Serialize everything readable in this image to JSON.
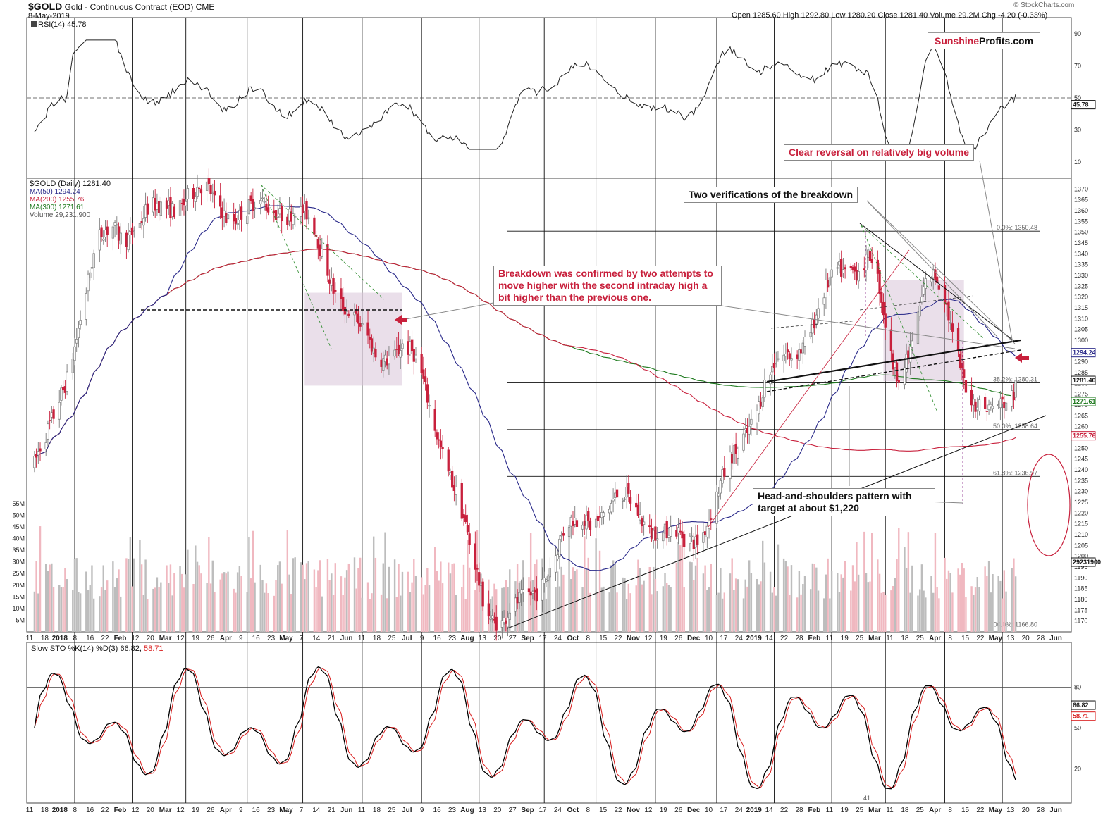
{
  "header": {
    "symbol": "$GOLD",
    "name": "Gold - Continuous Contract (EOD)",
    "exchange": "CME",
    "date": "8-May-2019",
    "ohlc": "Open 1285.60  High 1292.80  Low 1280.20  Close 1281.40  Volume 29.2M  Chg -4.20 (-0.33%)",
    "copyright": "© StockCharts.com"
  },
  "brand": {
    "part1": "Sunshine",
    "part2": "Profits.com"
  },
  "annotations": {
    "clear_reversal": "Clear reversal on relatively big volume",
    "two_verifications": "Two verifications of the breakdown",
    "breakdown_confirmed": "Breakdown was confirmed by two attempts to move higher with the second intraday high a bit higher than the previous one.",
    "head_shoulders": "Head-and-shoulders pattern with target at about $1,220"
  },
  "colors": {
    "up": "#7a7a7a",
    "down": "#c8203c",
    "ma50": "#2a2a8a",
    "ma200": "#c8203c",
    "ma300": "#1e7a1e",
    "fib": "#111111",
    "rsi": "#222222",
    "stoch_k": "#000000",
    "stoch_d": "#d81b1b",
    "pattern_zone": "#d8c4d8",
    "volume_up": "#bdbdbd",
    "volume_down": "#f0b8c0"
  },
  "chart_data": {
    "type": "candlestick",
    "price_panel": {
      "legend_title": "$GOLD (Daily) 1281.40",
      "legend_ma50": "MA(50) 1294.24",
      "legend_ma200": "MA(200) 1255.76",
      "legend_ma300": "MA(300) 1271.61",
      "legend_volume": "Volume 29,231,900",
      "ylim": [
        1165,
        1375
      ],
      "y_ticks": [
        "1370",
        "1365",
        "1360",
        "1355",
        "1350",
        "1345",
        "1340",
        "1335",
        "1330",
        "1325",
        "1320",
        "1315",
        "1310",
        "1305",
        "1300",
        "1295",
        "1290",
        "1285",
        "1280",
        "1275",
        "1270",
        "1265",
        "1260",
        "1255",
        "1250",
        "1245",
        "1240",
        "1235",
        "1230",
        "1225",
        "1220",
        "1215",
        "1210",
        "1205",
        "1200",
        "1195",
        "1190",
        "1185",
        "1180",
        "1175",
        "1170"
      ],
      "last_values": {
        "close": "1281.40",
        "ma50": "1294.24",
        "ma300": "1271.61",
        "ma200": "1255.76",
        "volume": "29231900"
      },
      "fib_levels": [
        {
          "label": "0.0%: 1350.48",
          "value": 1350.48
        },
        {
          "label": "38.2%: 1280.31",
          "value": 1280.31
        },
        {
          "label": "50.0%: 1258.64",
          "value": 1258.64
        },
        {
          "label": "61.8%: 1236.97",
          "value": 1236.97
        },
        {
          "label": "100.0%: 1166.80",
          "value": 1166.8
        }
      ],
      "volume_ticks": [
        "55M",
        "50M",
        "45M",
        "40M",
        "35M",
        "30M",
        "25M",
        "20M",
        "15M",
        "10M",
        "5M"
      ],
      "key_prices": [
        {
          "date": "2017-12-12",
          "close": 1243
        },
        {
          "date": "2018-01-25",
          "close": 1358
        },
        {
          "date": "2018-04-11",
          "close": 1365
        },
        {
          "date": "2018-06-14",
          "close": 1300
        },
        {
          "date": "2018-08-16",
          "close": 1176
        },
        {
          "date": "2018-10-15",
          "close": 1230
        },
        {
          "date": "2018-11-13",
          "close": 1201
        },
        {
          "date": "2019-01-04",
          "close": 1285
        },
        {
          "date": "2019-02-20",
          "close": 1345
        },
        {
          "date": "2019-03-07",
          "close": 1285
        },
        {
          "date": "2019-03-25",
          "close": 1320
        },
        {
          "date": "2019-04-23",
          "close": 1270
        },
        {
          "date": "2019-05-08",
          "close": 1281.4
        }
      ]
    },
    "rsi_panel": {
      "label": "RSI(14) 45.78",
      "ylim": [
        0,
        100
      ],
      "y_ticks": [
        "90",
        "70",
        "50",
        "30",
        "10"
      ],
      "last": "45.78"
    },
    "stoch_panel": {
      "label_prefix": "Slow STO %K(14) %D(3) 66.82,",
      "label_d": "58.71",
      "ylim": [
        0,
        100
      ],
      "y_ticks": [
        "80",
        "50",
        "20"
      ],
      "last_k": "66.82",
      "last_d": "58.71"
    },
    "x_axis": {
      "labels": [
        "11",
        "18",
        "2018",
        "8",
        "16",
        "22",
        "Feb",
        "12",
        "20",
        "Mar",
        "12",
        "19",
        "26",
        "Apr",
        "9",
        "16",
        "23",
        "May",
        "7",
        "14",
        "21",
        "Jun",
        "11",
        "18",
        "25",
        "Jul",
        "9",
        "16",
        "23",
        "Aug",
        "13",
        "20",
        "27",
        "Sep",
        "17",
        "24",
        "Oct",
        "8",
        "15",
        "22",
        "Nov",
        "12",
        "19",
        "26",
        "Dec",
        "10",
        "17",
        "24",
        "2019",
        "14",
        "22",
        "28",
        "Feb",
        "11",
        "19",
        "25",
        "Mar",
        "11",
        "18",
        "25",
        "Apr",
        "8",
        "15",
        "22",
        "May",
        "13",
        "20",
        "28",
        "Jun"
      ],
      "bold_labels": [
        "2018",
        "Feb",
        "Mar",
        "Apr",
        "May",
        "Jun",
        "Jul",
        "Aug",
        "Sep",
        "Oct",
        "Nov",
        "Dec",
        "2019"
      ]
    },
    "aux_label": "41"
  }
}
